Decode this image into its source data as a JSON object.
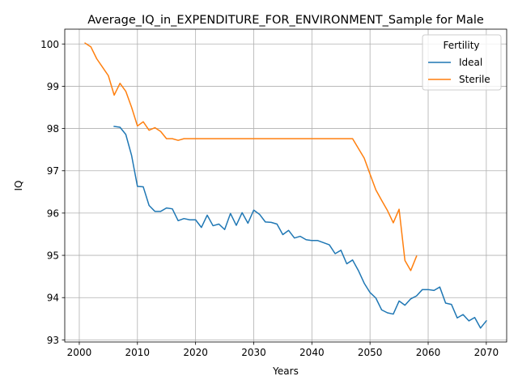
{
  "chart_data": {
    "type": "line",
    "title": "Average_IQ_in_EXPENDITURE_FOR_ENVIRONMENT_Sample for Male",
    "xlabel": "Years",
    "ylabel": "IQ",
    "xlim": [
      1997.5,
      2073.5
    ],
    "ylim": [
      92.95,
      100.35
    ],
    "xticks": [
      2000,
      2010,
      2020,
      2030,
      2040,
      2050,
      2060,
      2070
    ],
    "yticks": [
      93,
      94,
      95,
      96,
      97,
      98,
      99,
      100
    ],
    "grid": true,
    "legend": {
      "title": "Fertility",
      "placement": "top-right"
    },
    "series": [
      {
        "name": "Ideal",
        "color": "#1f77b4",
        "x": [
          2006,
          2007,
          2008,
          2009,
          2010,
          2011,
          2012,
          2013,
          2014,
          2015,
          2016,
          2017,
          2018,
          2019,
          2020,
          2021,
          2022,
          2023,
          2024,
          2025,
          2026,
          2027,
          2028,
          2029,
          2030,
          2031,
          2032,
          2033,
          2034,
          2035,
          2036,
          2037,
          2038,
          2039,
          2040,
          2041,
          2042,
          2043,
          2044,
          2045,
          2046,
          2047,
          2048,
          2049,
          2050,
          2051,
          2052,
          2053,
          2054,
          2055,
          2056,
          2057,
          2058,
          2059,
          2060,
          2061,
          2062,
          2063,
          2064,
          2065,
          2066,
          2067,
          2068,
          2069,
          2070
        ],
        "values": [
          98.05,
          98.03,
          97.86,
          97.36,
          96.63,
          96.62,
          96.18,
          96.04,
          96.04,
          96.12,
          96.1,
          95.82,
          95.87,
          95.84,
          95.84,
          95.66,
          95.95,
          95.7,
          95.74,
          95.61,
          95.99,
          95.71,
          96.01,
          95.76,
          96.07,
          95.97,
          95.79,
          95.78,
          95.74,
          95.49,
          95.59,
          95.41,
          95.45,
          95.37,
          95.35,
          95.35,
          95.3,
          95.25,
          95.04,
          95.12,
          94.8,
          94.89,
          94.64,
          94.34,
          94.12,
          93.99,
          93.71,
          93.64,
          93.61,
          93.92,
          93.82,
          93.97,
          94.04,
          94.19,
          94.19,
          94.17,
          94.25,
          93.87,
          93.84,
          93.52,
          93.6,
          93.45,
          93.53,
          93.28,
          93.45
        ]
      },
      {
        "name": "Sterile",
        "color": "#ff7f0e",
        "x": [
          2001,
          2002,
          2003,
          2004,
          2005,
          2006,
          2007,
          2008,
          2009,
          2010,
          2011,
          2012,
          2013,
          2014,
          2015,
          2016,
          2017,
          2018,
          2019,
          2020,
          2021,
          2022,
          2023,
          2024,
          2025,
          2026,
          2027,
          2028,
          2029,
          2030,
          2031,
          2032,
          2033,
          2034,
          2035,
          2036,
          2037,
          2038,
          2039,
          2040,
          2041,
          2042,
          2043,
          2044,
          2045,
          2046,
          2047,
          2048,
          2049,
          2050,
          2051,
          2052,
          2053,
          2054,
          2055,
          2056,
          2057,
          2058
        ],
        "values": [
          100.02,
          99.93,
          99.65,
          99.45,
          99.25,
          98.79,
          99.07,
          98.88,
          98.5,
          98.06,
          98.16,
          97.96,
          98.02,
          97.93,
          97.76,
          97.76,
          97.72,
          97.76,
          97.76,
          97.76,
          97.76,
          97.76,
          97.76,
          97.76,
          97.76,
          97.76,
          97.76,
          97.76,
          97.76,
          97.76,
          97.76,
          97.76,
          97.76,
          97.76,
          97.76,
          97.76,
          97.76,
          97.76,
          97.76,
          97.76,
          97.76,
          97.76,
          97.76,
          97.76,
          97.76,
          97.76,
          97.76,
          97.53,
          97.3,
          96.92,
          96.55,
          96.3,
          96.06,
          95.77,
          96.09,
          94.88,
          94.64,
          94.98
        ]
      }
    ]
  }
}
